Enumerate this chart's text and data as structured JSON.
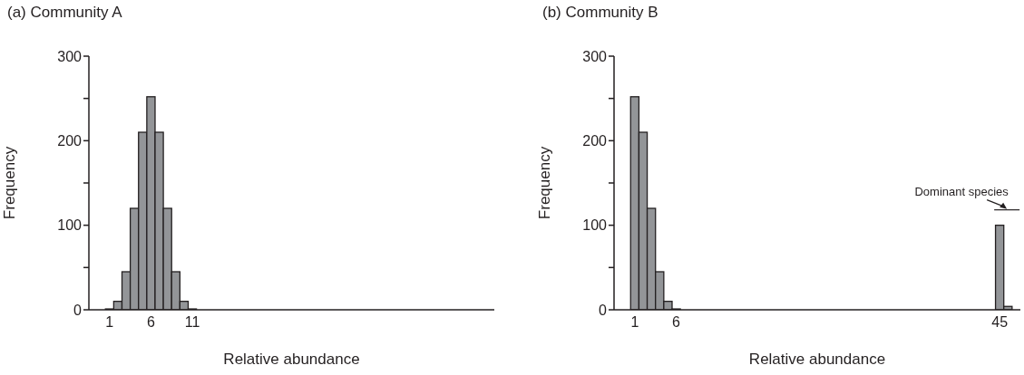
{
  "chart_data": [
    {
      "type": "histogram",
      "title": "(a) Community A",
      "xlabel": "Relative abundance",
      "ylabel": "Frequency",
      "bins": [
        0.5,
        1.5,
        2.5,
        3.5,
        4.5,
        5.5,
        6.5,
        7.5,
        8.5,
        9.5,
        10.5,
        11.5
      ],
      "values": [
        1,
        10,
        45,
        120,
        210,
        252,
        210,
        120,
        45,
        10,
        1
      ],
      "color": "#939598",
      "xlim": [
        -1.5,
        47.5
      ],
      "xticks": [
        1,
        6,
        11
      ],
      "ylim": [
        0,
        300
      ],
      "yticks": [
        0,
        {
          "value": 50,
          "label": null
        },
        100,
        {
          "value": 150,
          "label": null
        },
        200,
        {
          "value": 250,
          "label": null
        },
        300
      ],
      "grid": false
    },
    {
      "type": "histogram",
      "title": "(b) Community B",
      "xlabel": "Relative abundance",
      "ylabel": "Frequency",
      "bins": [
        0.5,
        1.5,
        2.5,
        3.5,
        4.5,
        5.5,
        6.5,
        7.5,
        8.5,
        9.5,
        10.5,
        11.5,
        12.5,
        13.5,
        14.5,
        15.5,
        16.5,
        17.5,
        18.5,
        19.5,
        20.5,
        21.5,
        22.5,
        23.5,
        24.5,
        25.5,
        26.5,
        27.5,
        28.5,
        29.5,
        30.5,
        31.5,
        32.5,
        33.5,
        34.5,
        35.5,
        36.5,
        37.5,
        38.5,
        39.5,
        40.5,
        41.5,
        42.5,
        43.5,
        44.5,
        45.5,
        46.5
      ],
      "values": [
        252,
        210,
        120,
        45,
        10,
        1,
        0,
        0,
        0,
        0,
        0,
        0,
        0,
        0,
        0,
        0,
        0,
        0,
        0,
        0,
        0,
        0,
        0,
        0,
        0,
        0,
        0,
        0,
        0,
        0,
        0,
        0,
        0,
        0,
        0,
        0,
        0,
        0,
        0,
        0,
        0,
        0,
        0,
        0,
        100,
        4
      ],
      "color": "#939598",
      "xlim": [
        -1.5,
        47.5
      ],
      "xticks": [
        1,
        6,
        45
      ],
      "ylim": [
        0,
        300
      ],
      "yticks": [
        0,
        {
          "value": 50,
          "label": null
        },
        100,
        {
          "value": 150,
          "label": null
        },
        200,
        {
          "value": 250,
          "label": null
        },
        300
      ],
      "grid": false,
      "annotations": [
        "Dominant species"
      ]
    }
  ]
}
